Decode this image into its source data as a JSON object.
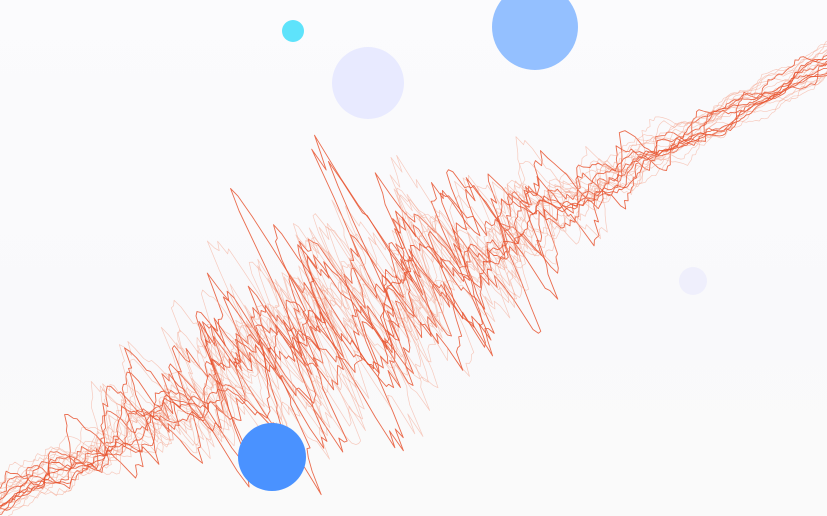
{
  "scene": {
    "background": "#fafafb",
    "wave_color": "#e8542f",
    "wave_color_light": "#f4a48c",
    "circles": [
      {
        "id": "circle-cyan-small",
        "color": "#5ee3fb"
      },
      {
        "id": "circle-lavender-medium",
        "color": "#e8eaff"
      },
      {
        "id": "circle-blue-top",
        "color": "#94c0ff"
      },
      {
        "id": "circle-lavender-small",
        "color": "#efeffc"
      },
      {
        "id": "circle-blue-bottom",
        "color": "#4a92ff"
      }
    ]
  }
}
